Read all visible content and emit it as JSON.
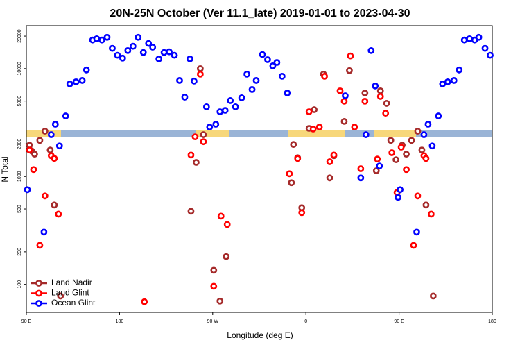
{
  "chart_data": {
    "type": "scatter",
    "title": "20N-25N October (Ver 11.1_late)   2019-01-01 to 2023-04-30",
    "x_label": "Longitude (deg E)",
    "y_label": "N Total",
    "xlim": [
      90,
      540
    ],
    "ylim": [
      55,
      25000
    ],
    "y_scale": "log",
    "legend": "lower left",
    "xticks": [
      {
        "value": 90,
        "label": "90 E"
      },
      {
        "value": 180,
        "label": "180"
      },
      {
        "value": 270,
        "label": "90 W"
      },
      {
        "value": 360,
        "label": "0"
      },
      {
        "value": 450,
        "label": "90 E"
      },
      {
        "value": 540,
        "label": "180"
      }
    ],
    "yticks": [
      100,
      200,
      500,
      1000,
      2000,
      5000,
      10000,
      20000
    ],
    "series": [
      {
        "name": "Land Nadir",
        "color": "#a52a2a",
        "x": [
          93,
          95,
          98,
          103,
          108,
          113,
          117,
          123,
          249,
          254,
          258,
          261,
          271,
          277,
          283,
          346,
          348,
          352,
          356,
          363,
          368,
          377,
          383,
          387,
          397,
          402,
          417,
          428,
          432,
          438,
          442,
          447,
          453,
          457,
          462,
          468,
          472,
          476,
          483
        ],
        "values": [
          1950,
          1730,
          1610,
          2160,
          2630,
          1760,
          544,
          78,
          476,
          1350,
          10000,
          2440,
          135,
          70,
          181,
          875,
          1980,
          1490,
          513,
          2790,
          4160,
          8880,
          970,
          1560,
          3240,
          9570,
          5940,
          1130,
          6220,
          4760,
          2160,
          1430,
          1950,
          1610,
          2160,
          2630,
          1760,
          544,
          78
        ]
      },
      {
        "name": "Land Glint",
        "color": "#ff0000",
        "x": [
          93,
          97,
          103,
          108,
          114,
          117,
          121,
          204,
          249,
          253,
          258,
          261,
          271,
          278,
          284,
          344,
          352,
          356,
          363,
          367,
          373,
          378,
          383,
          387,
          393,
          397,
          403,
          407,
          413,
          417,
          429,
          432,
          437,
          443,
          448,
          452,
          457,
          464,
          468,
          474,
          476,
          481
        ],
        "values": [
          1760,
          1160,
          230,
          660,
          1560,
          1470,
          448,
          69,
          1580,
          2330,
          8880,
          2100,
          96,
          429,
          359,
          1060,
          1470,
          462,
          3980,
          2750,
          2870,
          8490,
          1370,
          1580,
          6220,
          4980,
          13100,
          2870,
          1180,
          4980,
          1450,
          5520,
          3860,
          1660,
          710,
          1870,
          1160,
          230,
          660,
          1560,
          1470,
          448
        ]
      },
      {
        "name": "Ocean Glint",
        "color": "#0000ff",
        "x": [
          91,
          107,
          114,
          118,
          122,
          128,
          132,
          138,
          144,
          148,
          154,
          158,
          163,
          168,
          173,
          178,
          183,
          188,
          193,
          198,
          203,
          208,
          212,
          218,
          223,
          228,
          233,
          238,
          243,
          248,
          252,
          264,
          267,
          273,
          277,
          282,
          287,
          292,
          298,
          303,
          308,
          312,
          318,
          323,
          328,
          332,
          337,
          342,
          398,
          413,
          418,
          423,
          427,
          431,
          449,
          451,
          467,
          474,
          478,
          482,
          488,
          492,
          497,
          503,
          508,
          513,
          518,
          523,
          527,
          533,
          538
        ],
        "values": [
          754,
          305,
          2440,
          3050,
          1920,
          3640,
          7210,
          7540,
          7760,
          9710,
          18400,
          18900,
          18400,
          19500,
          15400,
          13300,
          12500,
          14700,
          16100,
          19500,
          14100,
          17100,
          15800,
          12300,
          14100,
          14300,
          13300,
          7760,
          5440,
          12300,
          7660,
          4420,
          2870,
          3050,
          3980,
          4100,
          5050,
          4420,
          5360,
          8880,
          6400,
          7760,
          13500,
          12100,
          10600,
          11400,
          8490,
          5940,
          5600,
          970,
          2440,
          14700,
          6900,
          1250,
          640,
          754,
          305,
          2440,
          3050,
          1920,
          3640,
          7210,
          7540,
          7760,
          9710,
          18400,
          18900,
          18400,
          19500,
          15400,
          13300
        ]
      }
    ]
  }
}
